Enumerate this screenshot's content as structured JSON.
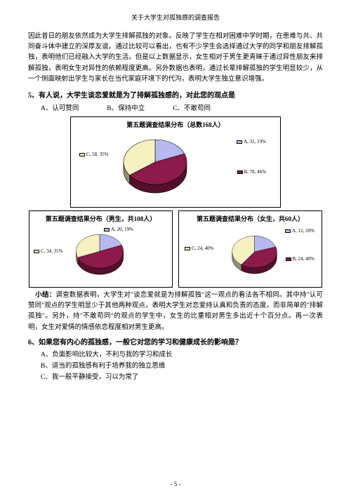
{
  "header": {
    "title": "关于大学生对孤独感的调查报告"
  },
  "para1": "因此昔日的朋友依然成为大学生排解孤独的对象。反映了学生在相对困难中学时期，在患难与共、共同奋斗体中建立的深厚友谊。通过比较可以看出，也有不少学生会选择通过大学的同学和朋友排解孤独，表明他们已经融入大学的生活。但是以上数据显示，女生相对于男生更青睐于通过异性朋友来排解孤独，表明女生对异性的依赖程度更高。另外数据也表明，通过长辈排解孤独的学生明显较少，从一个侧面映射出学生与家长在当代家庭环境下的代沟，表明大学生独立意识增强。",
  "q5": {
    "text": "5、有人说，大学生谈恋爱就是为了排解孤独感的，对此您的观点是",
    "options": {
      "a": "A、认可赞同",
      "b": "B、保持中立",
      "c": "C、不敢苟同"
    }
  },
  "charts": {
    "colors": {
      "a": "#b8b8f0",
      "b": "#8c1a4a",
      "c": "#f5f0c0",
      "border": "#000000",
      "bg": "#ffffff"
    },
    "main": {
      "title": "第五题调查结果分布（总数168人）",
      "slices": [
        {
          "label": "A, 32, 19%",
          "value": 19,
          "color": "#b8b8f0"
        },
        {
          "label": "B, 78, 46%",
          "value": 46,
          "color": "#8c1a4a"
        },
        {
          "label": "C, 58, 35%",
          "value": 35,
          "color": "#f5f0c0"
        }
      ]
    },
    "male": {
      "title": "第五题调查结果分布（男生，共108人）",
      "slices": [
        {
          "label": "A, 20, 19%",
          "value": 19,
          "color": "#b8b8f0"
        },
        {
          "label": "B",
          "value": 50,
          "color": "#8c1a4a"
        },
        {
          "label": "C, 34, 31%",
          "value": 31,
          "color": "#f5f0c0"
        }
      ]
    },
    "female": {
      "title": "第五题调查结果分布（女生，共60人）",
      "slices": [
        {
          "label": "A, 12, 20%",
          "value": 20,
          "color": "#b8b8f0"
        },
        {
          "label": "B, 24, 40%",
          "value": 40,
          "color": "#8c1a4a"
        },
        {
          "label": "C, 24, 40%",
          "value": 40,
          "color": "#f5f0c0"
        }
      ]
    }
  },
  "summary": {
    "label": "小结：",
    "text": "调查数据表明，大学生对\"谈恋爱就是为排解孤独\"这一观点的看法各不相同。其中持\"认可赞同\"观点的学生明显少于其他两种观点，表明大学生对恋爱持认真和负责的态度，而非简单的\"排解孤独\"。另外，持\"不敢苟同\"的观点的学生中，女生的比重相对男生多出近十个百分点。再一次表明，女生对爱情的情感依恋程度相对男生更高。"
  },
  "q6": {
    "text": "6、如果您有内心的孤独感，一般它对您的学习和健康成长的影响是？",
    "options": {
      "a": "A、负面影响比较大，不利与我的学习和成长",
      "b": "B、适当的孤独感有利于培养我的独立思维",
      "c": "C、我一般平静接受，习以为常了"
    }
  },
  "footer": {
    "page": "- 5 -"
  }
}
